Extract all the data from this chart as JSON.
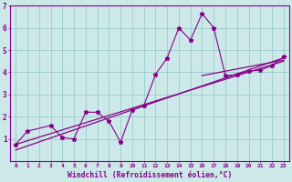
{
  "xlabel": "Windchill (Refroidissement éolien,°C)",
  "background_color": "#cce8e8",
  "line_color": "#880088",
  "grid_color": "#99cccc",
  "xlim": [
    -0.5,
    23.5
  ],
  "ylim": [
    0,
    7
  ],
  "xticks": [
    0,
    1,
    2,
    3,
    4,
    5,
    6,
    7,
    8,
    9,
    10,
    11,
    12,
    13,
    14,
    15,
    16,
    17,
    18,
    19,
    20,
    21,
    22,
    23
  ],
  "yticks": [
    1,
    2,
    3,
    4,
    5,
    6,
    7
  ],
  "series1_x": [
    0,
    1,
    3,
    4,
    5,
    6,
    7,
    8,
    9,
    10,
    11,
    12,
    13,
    14,
    15,
    16,
    17,
    18,
    19,
    20,
    21,
    22,
    23
  ],
  "series1_y": [
    0.75,
    1.35,
    1.6,
    1.05,
    1.0,
    2.2,
    2.2,
    1.8,
    0.85,
    2.3,
    2.5,
    3.9,
    4.65,
    6.0,
    5.45,
    6.65,
    6.0,
    3.85,
    3.9,
    4.05,
    4.1,
    4.3,
    4.7
  ],
  "trend1_x": [
    0,
    23
  ],
  "trend1_y": [
    0.75,
    4.5
  ],
  "trend2_x": [
    0,
    23
  ],
  "trend2_y": [
    0.5,
    4.65
  ],
  "trend3_x": [
    16,
    23
  ],
  "trend3_y": [
    3.85,
    4.55
  ]
}
